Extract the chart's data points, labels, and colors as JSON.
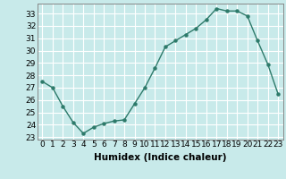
{
  "x": [
    0,
    1,
    2,
    3,
    4,
    5,
    6,
    7,
    8,
    9,
    10,
    11,
    12,
    13,
    14,
    15,
    16,
    17,
    18,
    19,
    20,
    21,
    22,
    23
  ],
  "y": [
    27.5,
    27.0,
    25.5,
    24.2,
    23.3,
    23.8,
    24.1,
    24.3,
    24.4,
    25.7,
    27.0,
    28.6,
    30.3,
    30.8,
    31.3,
    31.8,
    32.5,
    33.4,
    33.2,
    33.2,
    32.8,
    30.8,
    28.9,
    26.5
  ],
  "line_color": "#2d7a6a",
  "marker": "o",
  "marker_size": 2.2,
  "bg_color": "#c8eaea",
  "grid_color": "#ffffff",
  "xlabel": "Humidex (Indice chaleur)",
  "xlim": [
    -0.5,
    23.5
  ],
  "ylim": [
    22.8,
    33.8
  ],
  "yticks": [
    23,
    24,
    25,
    26,
    27,
    28,
    29,
    30,
    31,
    32,
    33
  ],
  "xtick_labels": [
    "0",
    "1",
    "2",
    "3",
    "4",
    "5",
    "6",
    "7",
    "8",
    "9",
    "10",
    "11",
    "12",
    "13",
    "14",
    "15",
    "16",
    "17",
    "18",
    "19",
    "20",
    "21",
    "22",
    "23"
  ],
  "tick_fontsize": 6.5,
  "xlabel_fontsize": 7.5,
  "line_width": 1.0
}
